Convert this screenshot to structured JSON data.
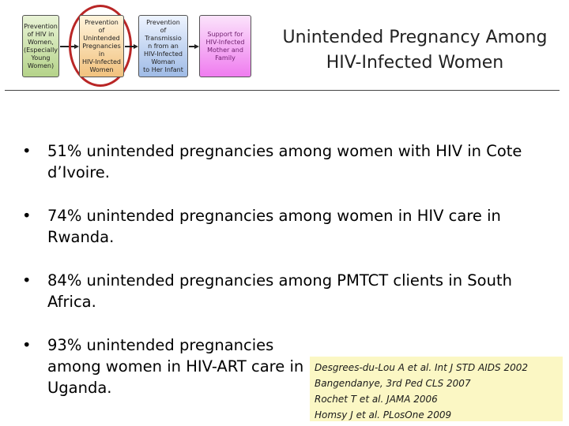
{
  "framework": {
    "boxes": [
      {
        "label": "Prevention\nof HIV in\nWomen,\n(Especially\nYoung\nWomen)"
      },
      {
        "label": "Prevention\nof\nUnintended\nPregnancies\nin\nHIV-Infected\nWomen"
      },
      {
        "label": "Prevention\nof\nTransmissio\nn from an\nHIV-Infected\nWoman\nto Her Infant"
      },
      {
        "label": "Support for\nHIV-Infected\nMother and\nFamily"
      }
    ],
    "highlight_color": "#b92626"
  },
  "title": "Unintended Pregnancy Among\nHIV-Infected Women",
  "bullets": [
    {
      "text": "51% unintended pregnancies among women with HIV in Cote d’Ivoire."
    },
    {
      "text": "74% unintended pregnancies among women in HIV care in Rwanda."
    },
    {
      "text": "84% unintended pregnancies among PMTCT clients in South Africa."
    },
    {
      "text": "93% unintended pregnancies among women in HIV-ART care in Uganda."
    }
  ],
  "references": [
    "Desgrees-du-Lou A et al.  Int J STD AIDS 2002",
    "Bangendanye, 3rd Ped CLS 2007",
    "Rochet T et al.  JAMA 2006",
    "Homsy J et al.  PLosOne 2009"
  ]
}
